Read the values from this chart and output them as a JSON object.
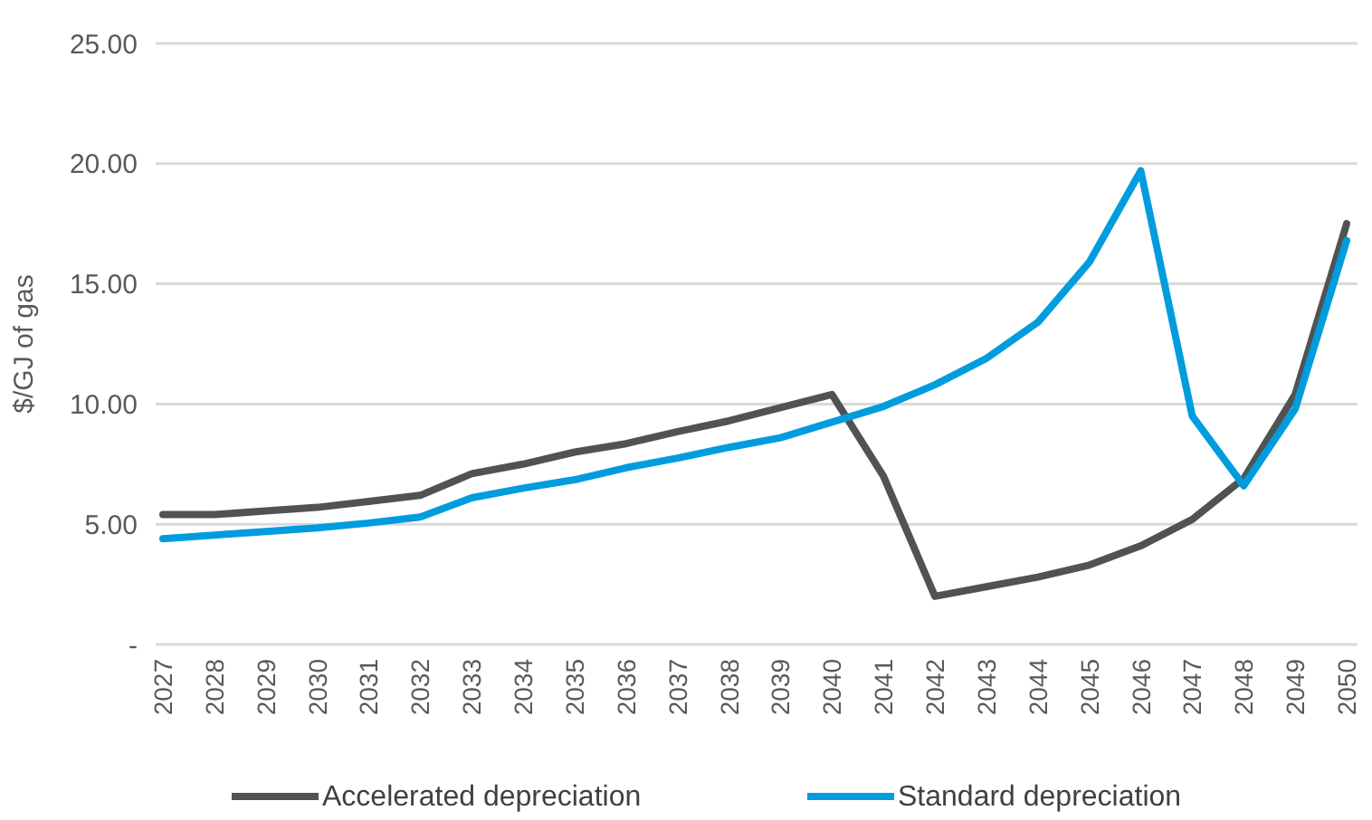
{
  "chart_data": {
    "type": "line",
    "ylabel": "$/GJ of gas",
    "categories": [
      "2027",
      "2028",
      "2029",
      "2030",
      "2031",
      "2032",
      "2033",
      "2034",
      "2035",
      "2036",
      "2037",
      "2038",
      "2039",
      "2040",
      "2041",
      "2042",
      "2043",
      "2044",
      "2045",
      "2046",
      "2047",
      "2048",
      "2049",
      "2050"
    ],
    "series": [
      {
        "name": "Accelerated depreciation",
        "color": "#505356",
        "values": [
          5.4,
          5.4,
          5.55,
          5.7,
          5.95,
          6.2,
          7.1,
          7.5,
          8.0,
          8.35,
          8.85,
          9.3,
          9.85,
          10.4,
          7.0,
          2.0,
          2.4,
          2.8,
          3.3,
          4.1,
          5.2,
          6.9,
          10.4,
          17.5
        ]
      },
      {
        "name": "Standard depreciation",
        "color": "#009cde",
        "values": [
          4.4,
          4.55,
          4.7,
          4.85,
          5.05,
          5.3,
          6.1,
          6.5,
          6.85,
          7.35,
          7.75,
          8.2,
          8.6,
          9.25,
          9.9,
          10.8,
          11.9,
          13.4,
          15.9,
          19.7,
          9.5,
          6.6,
          9.8,
          16.8
        ]
      }
    ],
    "ylim": [
      0,
      25
    ],
    "yticks": [
      {
        "value": 0,
        "label": "-"
      },
      {
        "value": 5,
        "label": "5.00"
      },
      {
        "value": 10,
        "label": "10.00"
      },
      {
        "value": 15,
        "label": "15.00"
      },
      {
        "value": 20,
        "label": "20.00"
      },
      {
        "value": 25,
        "label": "25.00"
      }
    ],
    "grid": "y",
    "legend": "bottom",
    "line_style": "solid"
  }
}
